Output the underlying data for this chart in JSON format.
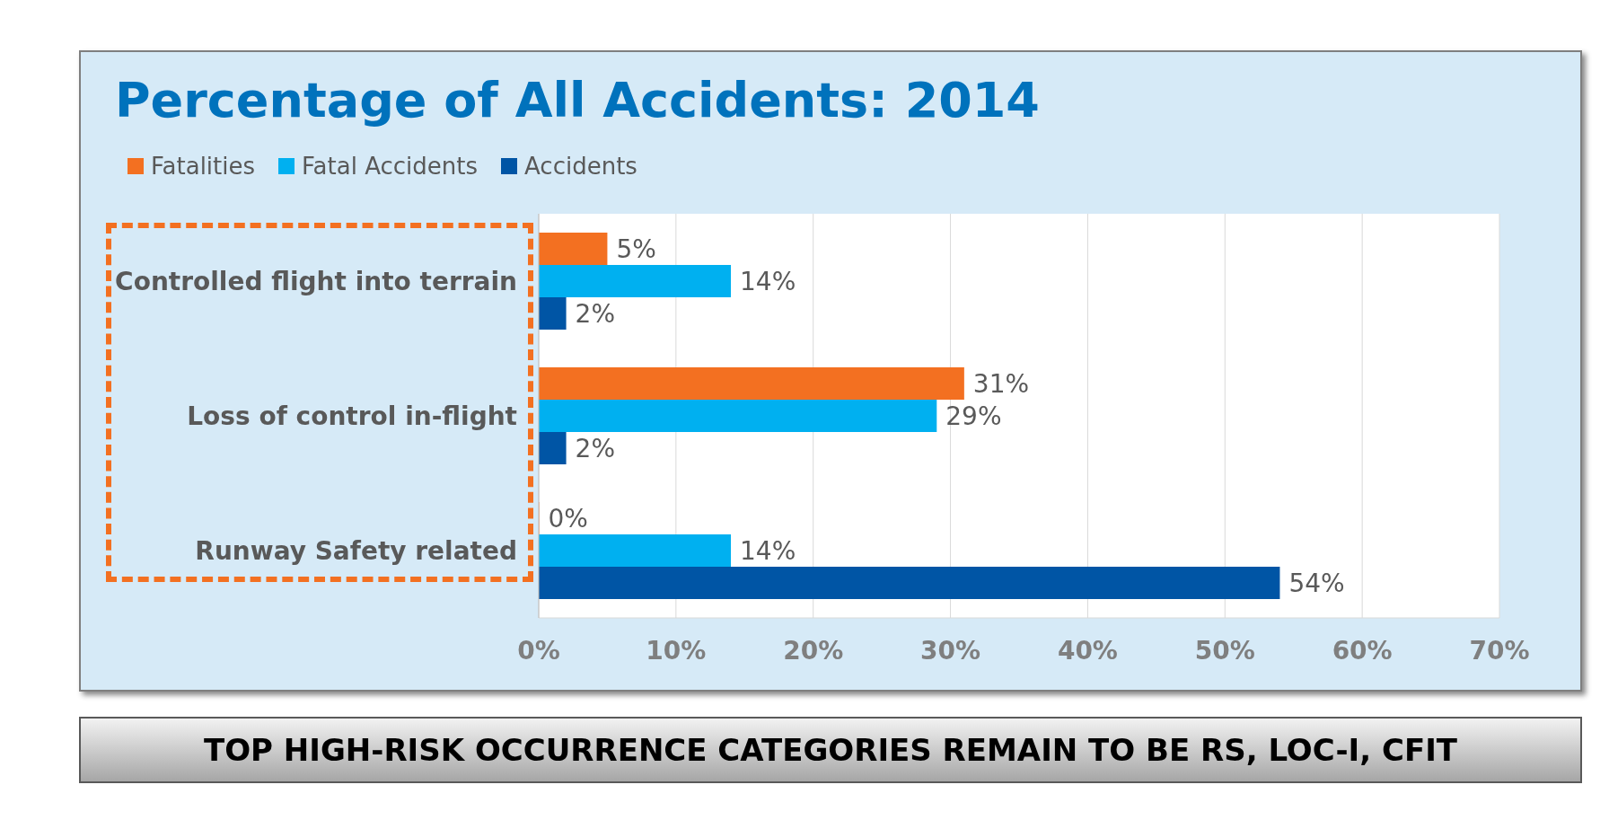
{
  "chart_data": {
    "type": "bar",
    "orientation": "horizontal",
    "title": "Percentage of All Accidents: 2014",
    "categories": [
      "Controlled flight into terrain",
      "Loss of control in-flight",
      "Runway Safety related"
    ],
    "series": [
      {
        "name": "Fatalities",
        "color": "#f37021",
        "values": [
          5,
          31,
          0
        ],
        "value_labels": [
          "5%",
          "31%",
          "0%"
        ]
      },
      {
        "name": "Fatal Accidents",
        "color": "#00b0f0",
        "values": [
          14,
          29,
          14
        ],
        "value_labels": [
          "14%",
          "29%",
          "14%"
        ]
      },
      {
        "name": "Accidents",
        "color": "#0055a5",
        "values": [
          2,
          2,
          54
        ],
        "value_labels": [
          "2%",
          "2%",
          "54%"
        ]
      }
    ],
    "xlim": [
      0,
      70
    ],
    "xticks": [
      {
        "value": 0,
        "label": "0%"
      },
      {
        "value": 10,
        "label": "10%"
      },
      {
        "value": 20,
        "label": "20%"
      },
      {
        "value": 30,
        "label": "30%"
      },
      {
        "value": 40,
        "label": "40%"
      },
      {
        "value": 50,
        "label": "50%"
      },
      {
        "value": 60,
        "label": "60%"
      },
      {
        "value": 70,
        "label": "70%"
      }
    ],
    "grid": "x",
    "legend": "top left",
    "annotations": [
      "TOP HIGH-RISK OCCURRENCE CATEGORIES REMAIN TO BE RS, LOC-I, CFIT"
    ]
  }
}
